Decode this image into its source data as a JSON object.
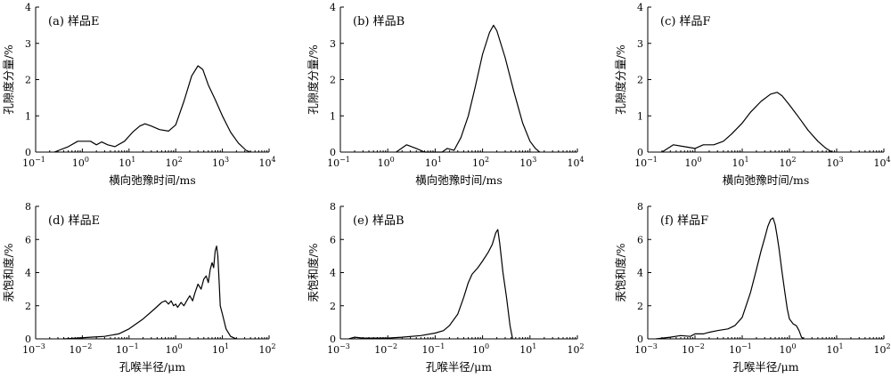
{
  "chart_data": [
    {
      "id": "a",
      "type": "line",
      "title": "(a) 样品E",
      "xlabel": "横向弛豫时间/ms",
      "ylabel": "孔隙度分量/%",
      "xscale": "log",
      "xlim": [
        0.1,
        10000
      ],
      "ylim": [
        0,
        4
      ],
      "x_ticks": [
        {
          "exp": -1
        },
        {
          "exp": 0
        },
        {
          "exp": 1
        },
        {
          "exp": 2
        },
        {
          "exp": 3
        },
        {
          "exp": 4
        }
      ],
      "y_ticks": [
        0,
        1,
        2,
        3,
        4
      ],
      "grid": false,
      "x": [
        0.25,
        0.5,
        0.8,
        1.1,
        1.5,
        2.0,
        2.6,
        3.5,
        5,
        8,
        12,
        17,
        22,
        30,
        45,
        70,
        100,
        150,
        220,
        300,
        380,
        500,
        700,
        1000,
        1500,
        2200,
        3200,
        4000
      ],
      "y": [
        0,
        0.15,
        0.3,
        0.3,
        0.3,
        0.2,
        0.28,
        0.2,
        0.15,
        0.3,
        0.55,
        0.72,
        0.78,
        0.72,
        0.62,
        0.58,
        0.75,
        1.4,
        2.1,
        2.38,
        2.28,
        1.85,
        1.45,
        1.0,
        0.55,
        0.25,
        0.05,
        0
      ]
    },
    {
      "id": "b",
      "type": "line",
      "title": "(b) 样品B",
      "xlabel": "横向弛豫时间/ms",
      "ylabel": "孔隙度分量/%",
      "xscale": "log",
      "xlim": [
        0.1,
        10000
      ],
      "ylim": [
        0,
        4
      ],
      "x_ticks": [
        {
          "exp": -1
        },
        {
          "exp": 0
        },
        {
          "exp": 1
        },
        {
          "exp": 2
        },
        {
          "exp": 3
        },
        {
          "exp": 4
        }
      ],
      "y_ticks": [
        0,
        1,
        2,
        3,
        4
      ],
      "grid": false,
      "x": [
        1.5,
        2.5,
        4,
        6,
        10,
        14,
        18,
        25,
        35,
        50,
        70,
        100,
        140,
        170,
        200,
        300,
        450,
        700,
        1000,
        1300,
        1600
      ],
      "y": [
        0,
        0.2,
        0.1,
        0,
        0,
        0,
        0.1,
        0.05,
        0.4,
        1.0,
        1.8,
        2.7,
        3.3,
        3.5,
        3.35,
        2.6,
        1.7,
        0.8,
        0.3,
        0.1,
        0
      ]
    },
    {
      "id": "c",
      "type": "line",
      "title": "(c) 样品F",
      "xlabel": "横向弛豫时间/ms",
      "ylabel": "孔隙度分量/%",
      "xscale": "log",
      "xlim": [
        0.1,
        10000
      ],
      "ylim": [
        0,
        4
      ],
      "x_ticks": [
        {
          "exp": -1
        },
        {
          "exp": 0
        },
        {
          "exp": 1
        },
        {
          "exp": 2
        },
        {
          "exp": 3
        },
        {
          "exp": 4
        }
      ],
      "y_ticks": [
        0,
        1,
        2,
        3,
        4
      ],
      "grid": false,
      "x": [
        0.2,
        0.35,
        0.6,
        1.0,
        1.5,
        2.5,
        4,
        6,
        10,
        15,
        25,
        40,
        55,
        70,
        100,
        150,
        250,
        400,
        600,
        800
      ],
      "y": [
        0,
        0.2,
        0.15,
        0.1,
        0.2,
        0.2,
        0.3,
        0.5,
        0.8,
        1.1,
        1.4,
        1.6,
        1.65,
        1.55,
        1.3,
        1.0,
        0.6,
        0.3,
        0.1,
        0
      ]
    },
    {
      "id": "d",
      "type": "line",
      "title": "(d) 样品E",
      "xlabel": "孔喉半径/μm",
      "ylabel": "汞饱和度/%",
      "xscale": "log",
      "xlim": [
        0.001,
        100
      ],
      "ylim": [
        0,
        8
      ],
      "x_ticks": [
        {
          "exp": -3
        },
        {
          "exp": -2
        },
        {
          "exp": -1
        },
        {
          "exp": 0
        },
        {
          "exp": 1
        },
        {
          "exp": 2
        }
      ],
      "y_ticks": [
        0,
        2,
        4,
        6,
        8
      ],
      "grid": false,
      "x": [
        0.004,
        0.008,
        0.015,
        0.03,
        0.06,
        0.1,
        0.2,
        0.35,
        0.5,
        0.6,
        0.7,
        0.8,
        0.9,
        1.0,
        1.1,
        1.3,
        1.5,
        1.8,
        2.0,
        2.3,
        2.6,
        3.0,
        3.5,
        4.0,
        4.5,
        5.0,
        5.5,
        6.0,
        6.5,
        7.0,
        7.5,
        8.0,
        8.5,
        9.0,
        10,
        12,
        15,
        18,
        20
      ],
      "y": [
        0,
        0.05,
        0.1,
        0.15,
        0.3,
        0.6,
        1.2,
        1.8,
        2.2,
        2.3,
        2.1,
        2.3,
        2.0,
        2.1,
        1.9,
        2.2,
        2.0,
        2.4,
        2.6,
        2.3,
        2.8,
        3.3,
        3.0,
        3.6,
        3.8,
        3.4,
        4.2,
        4.6,
        4.3,
        5.3,
        5.6,
        5.0,
        3.5,
        2.0,
        1.5,
        0.6,
        0.15,
        0.05,
        0
      ]
    },
    {
      "id": "e",
      "type": "line",
      "title": "(e) 样品B",
      "xlabel": "孔喉半径/μm",
      "ylabel": "汞饱和度/%",
      "xscale": "log",
      "xlim": [
        0.001,
        100
      ],
      "ylim": [
        0,
        8
      ],
      "x_ticks": [
        {
          "exp": -3
        },
        {
          "exp": -2
        },
        {
          "exp": -1
        },
        {
          "exp": 0
        },
        {
          "exp": 1
        },
        {
          "exp": 2
        }
      ],
      "y_ticks": [
        0,
        2,
        4,
        6,
        8
      ],
      "grid": false,
      "x": [
        0.0015,
        0.002,
        0.003,
        0.005,
        0.01,
        0.02,
        0.05,
        0.1,
        0.15,
        0.2,
        0.3,
        0.4,
        0.5,
        0.6,
        0.8,
        1.0,
        1.3,
        1.6,
        1.9,
        2.1,
        2.3,
        2.7,
        3.2,
        3.8,
        4.3
      ],
      "y": [
        0,
        0.1,
        0.05,
        0.05,
        0.05,
        0.1,
        0.2,
        0.35,
        0.5,
        0.8,
        1.5,
        2.5,
        3.4,
        3.9,
        4.3,
        4.7,
        5.2,
        5.7,
        6.4,
        6.6,
        5.8,
        4.0,
        2.5,
        0.8,
        0
      ]
    },
    {
      "id": "f",
      "type": "line",
      "title": "(f) 样品F",
      "xlabel": "孔喉半径/μm",
      "ylabel": "汞饱和度/%",
      "xscale": "log",
      "xlim": [
        0.001,
        100
      ],
      "ylim": [
        0,
        8
      ],
      "x_ticks": [
        {
          "exp": -3
        },
        {
          "exp": -2
        },
        {
          "exp": -1
        },
        {
          "exp": 0
        },
        {
          "exp": 1
        },
        {
          "exp": 2
        }
      ],
      "y_ticks": [
        0,
        2,
        4,
        6,
        8
      ],
      "grid": false,
      "x": [
        0.0015,
        0.003,
        0.005,
        0.008,
        0.01,
        0.015,
        0.02,
        0.03,
        0.05,
        0.07,
        0.1,
        0.15,
        0.2,
        0.25,
        0.3,
        0.35,
        0.4,
        0.45,
        0.5,
        0.55,
        0.6,
        0.7,
        0.8,
        0.9,
        1.0,
        1.2,
        1.4,
        1.6,
        1.8,
        2.0
      ],
      "y": [
        0,
        0.1,
        0.2,
        0.15,
        0.3,
        0.3,
        0.4,
        0.5,
        0.6,
        0.8,
        1.3,
        2.8,
        4.2,
        5.3,
        6.1,
        6.8,
        7.2,
        7.3,
        6.9,
        6.2,
        5.5,
        4.0,
        2.8,
        1.8,
        1.2,
        0.9,
        0.8,
        0.5,
        0.1,
        0
      ]
    }
  ]
}
